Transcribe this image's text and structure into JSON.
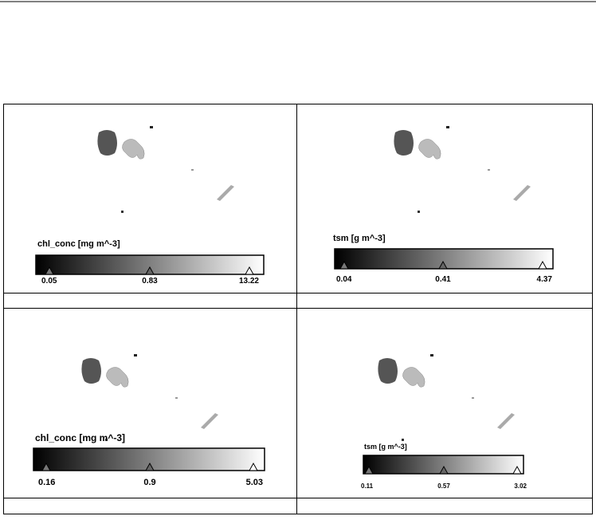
{
  "panels": [
    {
      "title": "chl_conc [mg m^-3]",
      "ticks": [
        "0.05",
        "0.83",
        "13.22"
      ]
    },
    {
      "title": "tsm [g m^-3]",
      "ticks": [
        "0.04",
        "0.41",
        "4.37"
      ]
    },
    {
      "title": "chl_conc [mg m^-3]",
      "ticks": [
        "0.16",
        "0.9",
        "5.03"
      ]
    },
    {
      "title": "tsm [g m^-3]",
      "ticks": [
        "0.11",
        "0.57",
        "3.02"
      ]
    }
  ]
}
